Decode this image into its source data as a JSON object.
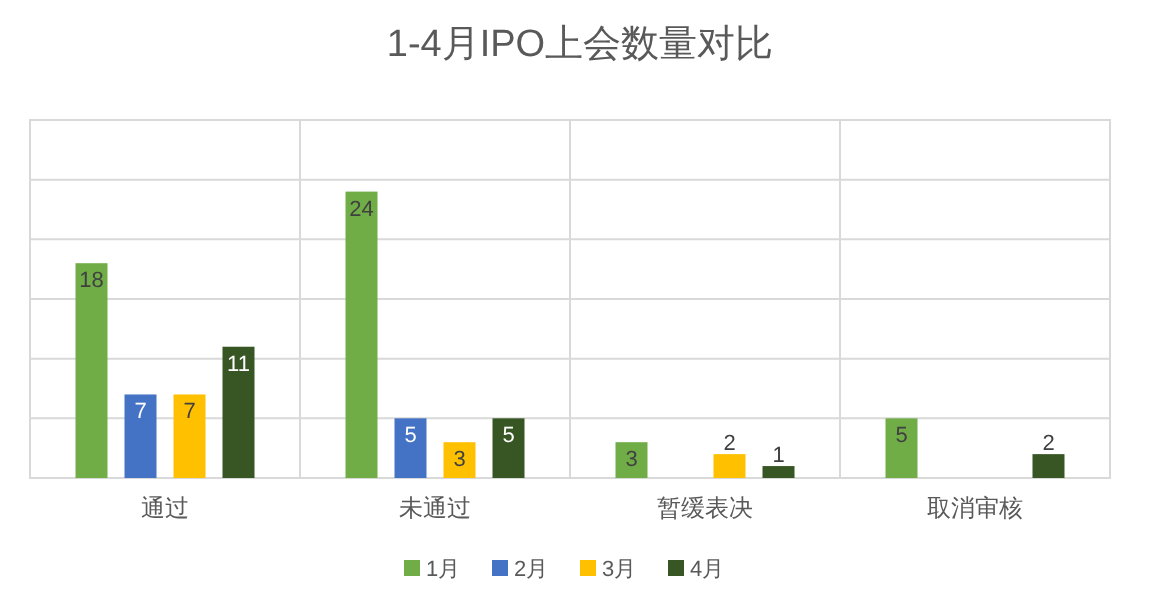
{
  "chart_data": {
    "type": "bar",
    "title": "1-4月IPO上会数量对比",
    "categories": [
      "通过",
      "未通过",
      "暂缓表决",
      "取消审核"
    ],
    "series": [
      {
        "name": "1月",
        "color": "#70ad47",
        "values": [
          18,
          24,
          3,
          5
        ],
        "value_labels": [
          "18",
          "24",
          "3",
          "5"
        ]
      },
      {
        "name": "2月",
        "color": "#4472c4",
        "values": [
          7,
          5,
          0,
          0
        ],
        "value_labels": [
          "7",
          "5",
          null,
          null
        ]
      },
      {
        "name": "3月",
        "color": "#ffc000",
        "values": [
          7,
          3,
          2,
          0
        ],
        "value_labels": [
          "7",
          "3",
          "2",
          null
        ]
      },
      {
        "name": "4月",
        "color": "#375623",
        "values": [
          11,
          5,
          1,
          2
        ],
        "value_labels": [
          "11",
          "5",
          "1",
          "2"
        ]
      }
    ],
    "ylim": [
      0,
      30
    ],
    "yticks": [
      {
        "value": 0,
        "label": null
      },
      {
        "value": 5,
        "label": null
      },
      {
        "value": 10,
        "label": null
      },
      {
        "value": 15,
        "label": null
      },
      {
        "value": 20,
        "label": null
      },
      {
        "value": 25,
        "label": null
      },
      {
        "value": 30,
        "label": null
      }
    ],
    "tick_labels": "x",
    "grid": true,
    "legend": "bottom"
  }
}
